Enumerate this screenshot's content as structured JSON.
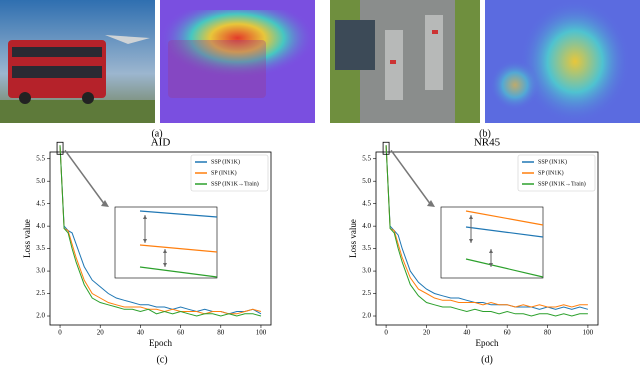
{
  "captions": [
    "(a)",
    "(b)",
    "(c)",
    "(d)"
  ],
  "chart_data": [
    {
      "type": "line",
      "title": "AID",
      "x_label": "Epoch",
      "y_label": "Loss value",
      "x": [
        0,
        2,
        4,
        6,
        8,
        12,
        16,
        20,
        24,
        28,
        32,
        36,
        40,
        44,
        48,
        52,
        56,
        60,
        64,
        68,
        72,
        76,
        80,
        84,
        88,
        92,
        96,
        100
      ],
      "xlim": [
        -5,
        105
      ],
      "xticks": [
        0,
        20,
        40,
        60,
        80,
        100
      ],
      "ylim": [
        1.8,
        5.65
      ],
      "yticks": [
        {
          "value": 2,
          "label": "2.0"
        },
        2.5,
        {
          "value": 3,
          "label": "3.0"
        },
        3.5,
        {
          "value": 4,
          "label": "4.0"
        },
        4.5,
        {
          "value": 5,
          "label": "5.0"
        },
        5.5
      ],
      "legend": "upper right",
      "series": [
        {
          "name": "SSP (IN1K)",
          "color": "#1f77b4",
          "values": [
            5.8,
            4.0,
            3.9,
            3.85,
            3.6,
            3.1,
            2.8,
            2.65,
            2.5,
            2.4,
            2.35,
            2.3,
            2.25,
            2.25,
            2.2,
            2.2,
            2.15,
            2.2,
            2.15,
            2.1,
            2.15,
            2.1,
            2.1,
            2.05,
            2.1,
            2.1,
            2.15,
            2.05
          ]
        },
        {
          "name": "SP (IN1K)",
          "color": "#ff7f0e",
          "values": [
            5.8,
            3.95,
            3.9,
            3.6,
            3.3,
            2.8,
            2.5,
            2.4,
            2.3,
            2.25,
            2.2,
            2.2,
            2.2,
            2.15,
            2.15,
            2.1,
            2.15,
            2.1,
            2.1,
            2.1,
            2.05,
            2.1,
            2.1,
            2.05,
            2.05,
            2.1,
            2.15,
            2.1
          ]
        },
        {
          "name": "SSP (IN1K→Train)",
          "color": "#2ca02c",
          "values": [
            5.8,
            3.95,
            3.85,
            3.5,
            3.2,
            2.7,
            2.4,
            2.3,
            2.25,
            2.2,
            2.15,
            2.15,
            2.1,
            2.15,
            2.05,
            2.1,
            2.05,
            2.1,
            2.05,
            2.0,
            2.05,
            2.05,
            2.0,
            2.05,
            2.0,
            2.05,
            2.05,
            2.0
          ]
        }
      ]
    },
    {
      "type": "line",
      "title": "NR45",
      "x_label": "Epoch",
      "y_label": "Loss value",
      "x": [
        0,
        2,
        4,
        6,
        8,
        12,
        16,
        20,
        24,
        28,
        32,
        36,
        40,
        44,
        48,
        52,
        56,
        60,
        64,
        68,
        72,
        76,
        80,
        84,
        88,
        92,
        96,
        100
      ],
      "xlim": [
        -5,
        105
      ],
      "xticks": [
        0,
        20,
        40,
        60,
        80,
        100
      ],
      "ylim": [
        1.8,
        5.65
      ],
      "yticks": [
        {
          "value": 2,
          "label": "2.0"
        },
        2.5,
        {
          "value": 3,
          "label": "3.0"
        },
        3.5,
        {
          "value": 4,
          "label": "4.0"
        },
        4.5,
        {
          "value": 5,
          "label": "5.0"
        },
        5.5
      ],
      "legend": "upper right",
      "series": [
        {
          "name": "SSP (IN1K)",
          "color": "#1f77b4",
          "values": [
            5.8,
            4.0,
            3.9,
            3.8,
            3.5,
            3.0,
            2.75,
            2.6,
            2.5,
            2.45,
            2.4,
            2.4,
            2.35,
            2.3,
            2.3,
            2.25,
            2.25,
            2.25,
            2.2,
            2.2,
            2.2,
            2.15,
            2.2,
            2.15,
            2.2,
            2.15,
            2.2,
            2.15
          ]
        },
        {
          "name": "SP (IN1K)",
          "color": "#ff7f0e",
          "values": [
            5.8,
            3.95,
            3.9,
            3.6,
            3.3,
            2.85,
            2.6,
            2.5,
            2.4,
            2.35,
            2.35,
            2.3,
            2.3,
            2.3,
            2.25,
            2.3,
            2.25,
            2.25,
            2.2,
            2.25,
            2.2,
            2.25,
            2.2,
            2.2,
            2.25,
            2.2,
            2.25,
            2.25
          ]
        },
        {
          "name": "SSP (IN1K→Train)",
          "color": "#2ca02c",
          "values": [
            5.8,
            3.95,
            3.85,
            3.5,
            3.2,
            2.7,
            2.45,
            2.3,
            2.25,
            2.2,
            2.2,
            2.15,
            2.1,
            2.15,
            2.1,
            2.1,
            2.05,
            2.1,
            2.05,
            2.05,
            2.0,
            2.05,
            2.05,
            2.0,
            2.05,
            2.0,
            2.05,
            2.05
          ]
        }
      ]
    }
  ]
}
